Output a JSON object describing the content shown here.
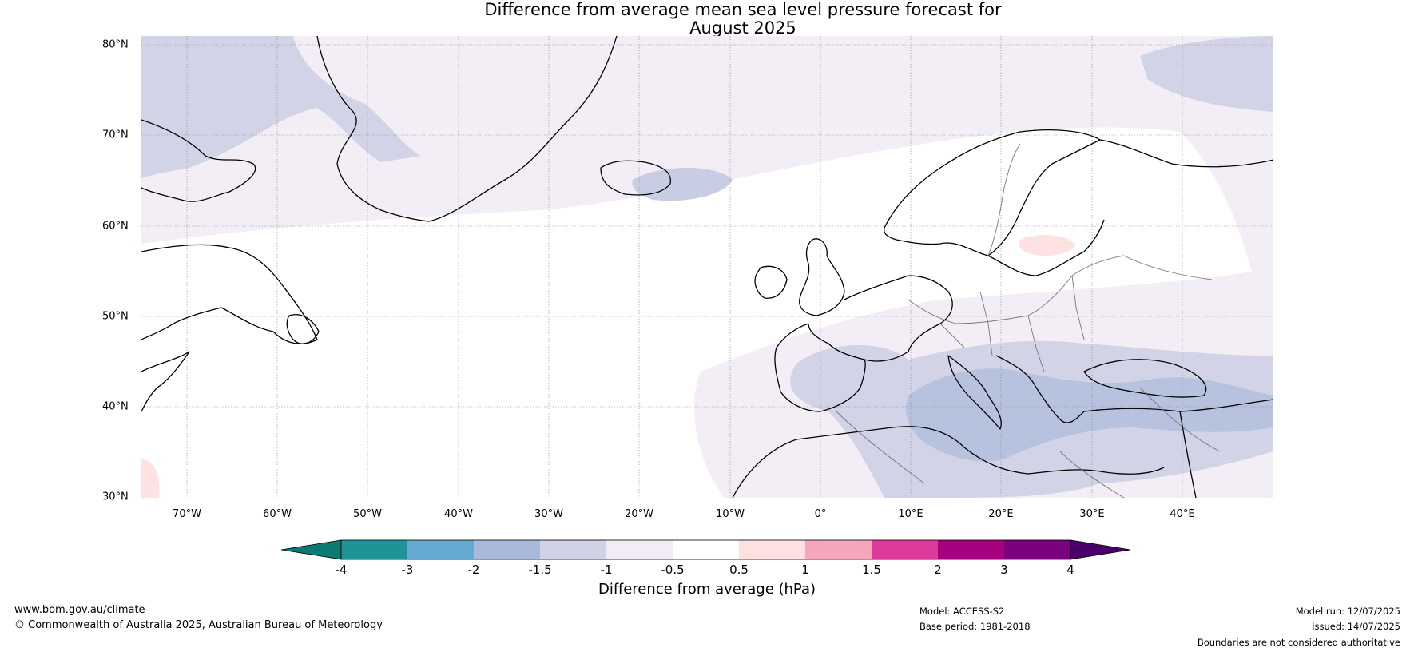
{
  "title": {
    "line1": "Difference from average mean sea level pressure forecast for",
    "line2": "August 2025"
  },
  "map": {
    "latitude_labels": [
      "80°N",
      "70°N",
      "60°N",
      "50°N",
      "40°N",
      "30°N"
    ],
    "longitude_labels": [
      "70°W",
      "60°W",
      "50°W",
      "40°W",
      "30°W",
      "20°W",
      "10°W",
      "0°",
      "10°E",
      "20°E",
      "30°E",
      "40°E"
    ]
  },
  "colorbar": {
    "ticks": [
      "-4",
      "-3",
      "-2",
      "-1.5",
      "-1",
      "-0.5",
      "0.5",
      "1",
      "1.5",
      "2",
      "3",
      "4"
    ],
    "colors": [
      "#0b7a70",
      "#1e9498",
      "#66a9d0",
      "#a9b9d9",
      "#d2d2e6",
      "#f2ecf6",
      "#ffffff",
      "#fde0df",
      "#f7a5bd",
      "#dd3a9c",
      "#a5007e",
      "#7a007d",
      "#4a0068"
    ],
    "label": "Difference from average (hPa)"
  },
  "footer": {
    "website": "www.bom.gov.au/climate",
    "copyright": "© Commonwealth of Australia 2025, Australian Bureau of Meteorology",
    "model": "Model: ACCESS-S2",
    "base_period": "Base period: 1981-2018",
    "model_run": "Model run: 12/07/2025",
    "issued": "Issued: 14/07/2025",
    "disclaimer": "Boundaries are not considered authoritative"
  }
}
